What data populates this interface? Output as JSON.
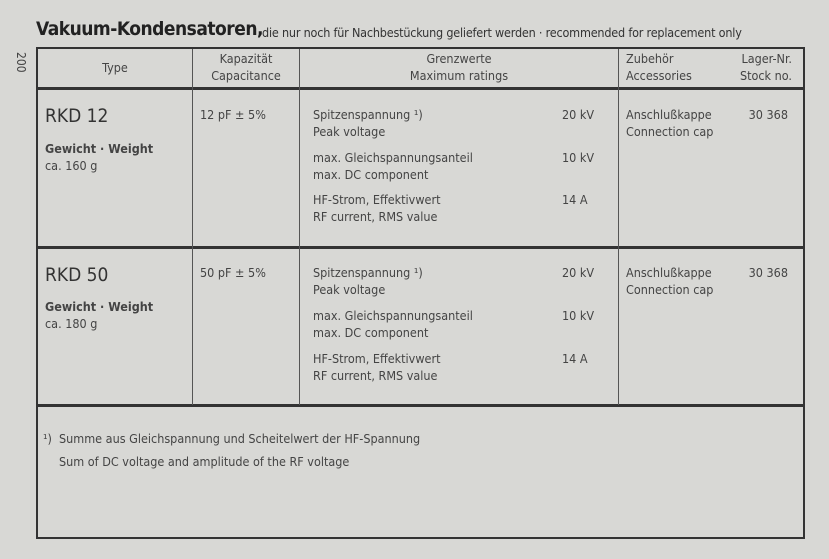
{
  "page_number": "200",
  "title": "Vakuum-Kondensatoren,",
  "subtitle": "die nur noch für Nachbestückung geliefert werden · recommended for replacement only",
  "header": {
    "type": "Type",
    "capacitance_de": "Kapazität",
    "capacitance_en": "Capacitance",
    "ratings_de": "Grenzwerte",
    "ratings_en": "Maximum ratings",
    "accessories_de": "Zubehör",
    "accessories_en": "Accessories",
    "stock_de": "Lager-Nr.",
    "stock_en": "Stock no."
  },
  "rows": [
    {
      "type": "RKD 12",
      "weight_label": "Gewicht · Weight",
      "weight": "ca. 160 g",
      "capacitance": "12 pF ± 5%",
      "ratings": [
        {
          "de": "Spitzenspannung ¹)",
          "en": "Peak voltage",
          "value": "20 kV"
        },
        {
          "de": "max. Gleichspannungsanteil",
          "en": "max. DC component",
          "value": "10 kV"
        },
        {
          "de": "HF-Strom, Effektivwert",
          "en": "RF current, RMS value",
          "value": "14 A"
        }
      ],
      "accessory_de": "Anschlußkappe",
      "accessory_en": "Connection cap",
      "stock": "30 368"
    },
    {
      "type": "RKD 50",
      "weight_label": "Gewicht · Weight",
      "weight": "ca. 180 g",
      "capacitance": "50 pF ± 5%",
      "ratings": [
        {
          "de": "Spitzenspannung ¹)",
          "en": "Peak voltage",
          "value": "20 kV"
        },
        {
          "de": "max. Gleichspannungsanteil",
          "en": "max. DC component",
          "value": "10 kV"
        },
        {
          "de": "HF-Strom, Effektivwert",
          "en": "RF current, RMS value",
          "value": "14 A"
        }
      ],
      "accessory_de": "Anschlußkappe",
      "accessory_en": "Connection cap",
      "stock": "30 368"
    }
  ],
  "footnote": {
    "marker": "¹)",
    "de": "Summe aus Gleichspannung und Scheitelwert der HF-Spannung",
    "en": "Sum of DC voltage and amplitude of the RF voltage"
  }
}
